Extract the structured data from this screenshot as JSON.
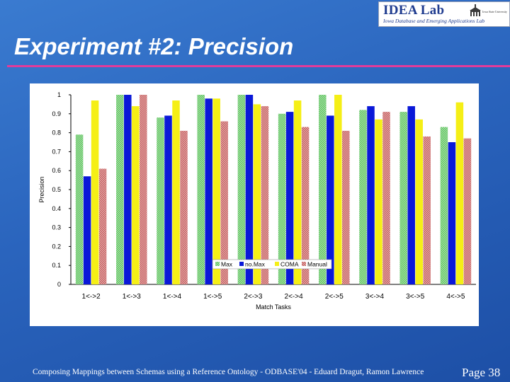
{
  "logo": {
    "title": "IDEA Lab",
    "subtitle": "Iowa Database and Emerging Applications Lab",
    "seal_caption": "Iowa State University"
  },
  "slide": {
    "title": "Experiment #2: Precision",
    "footer": "Composing Mappings between Schemas using a Reference Ontology - ODBASE'04 - Eduard Dragut, Ramon Lawrence",
    "page": "Page 38"
  },
  "colors": {
    "background": "#2a64bd",
    "accent_rule": "#e23b9a",
    "max": "#7ed17e",
    "nomax": "#0a18d8",
    "coma": "#f5ef16",
    "manual": "#d07878"
  },
  "chart_data": {
    "type": "bar",
    "title": "",
    "xlabel": "Match Tasks",
    "ylabel": "Precision",
    "ylim": [
      0,
      1
    ],
    "yticks": [
      0,
      0.1,
      0.2,
      0.3,
      0.4,
      0.5,
      0.6,
      0.7,
      0.8,
      0.9,
      1
    ],
    "ytick_labels": [
      "0",
      "0.1",
      "0.2",
      "0.3",
      "0.4",
      "0.5",
      "0.6",
      "0.7",
      "0.8",
      "0.9",
      "1"
    ],
    "grid": false,
    "legend_position": "bottom-center",
    "categories": [
      "1<->2",
      "1<->3",
      "1<->4",
      "1<->5",
      "2<->3",
      "2<->4",
      "2<->5",
      "3<->4",
      "3<->5",
      "4<->5"
    ],
    "series": [
      {
        "name": "Max",
        "color": "#7ed17e",
        "values": [
          0.79,
          1.0,
          0.88,
          1.0,
          1.0,
          0.9,
          1.0,
          0.92,
          0.91,
          0.83
        ]
      },
      {
        "name": "no.Max",
        "color": "#0a18d8",
        "values": [
          0.57,
          1.0,
          0.89,
          0.98,
          1.0,
          0.91,
          0.89,
          0.94,
          0.94,
          0.75
        ]
      },
      {
        "name": "COMA",
        "color": "#f5ef16",
        "values": [
          0.97,
          0.94,
          0.97,
          0.98,
          0.95,
          0.97,
          1.0,
          0.87,
          0.87,
          0.96
        ]
      },
      {
        "name": "Manual",
        "color": "#d07878",
        "values": [
          0.61,
          1.0,
          0.81,
          0.86,
          0.94,
          0.83,
          0.81,
          0.91,
          0.78,
          0.77
        ]
      }
    ]
  }
}
